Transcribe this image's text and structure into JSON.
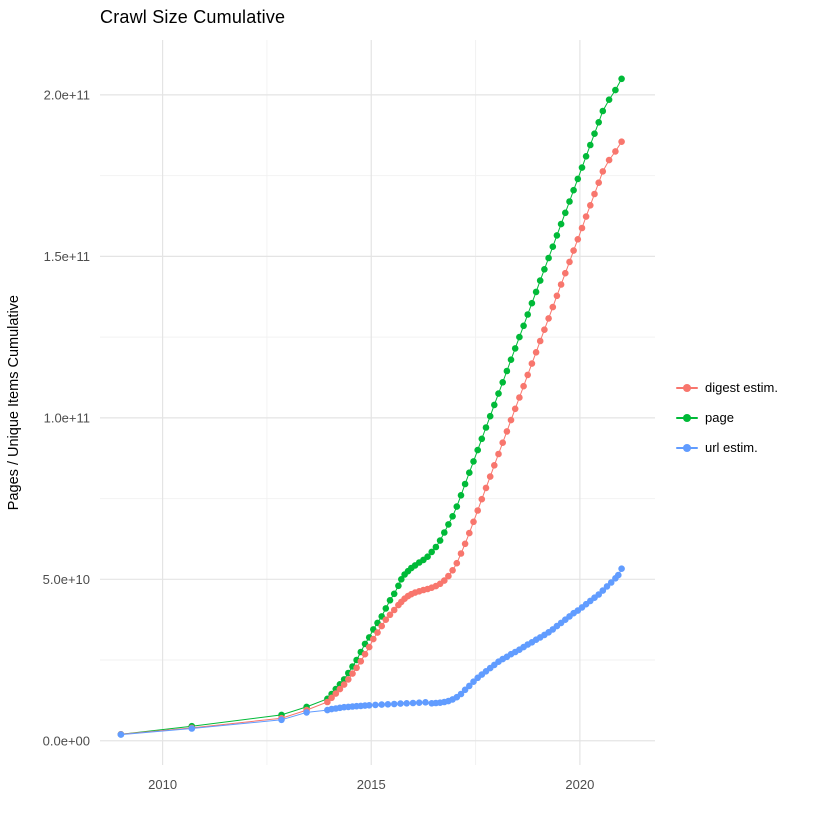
{
  "chart_data": {
    "type": "scatter",
    "title": "Crawl Size Cumulative",
    "xlabel": "",
    "ylabel": "Pages / Unique Items Cumulative",
    "grid": true,
    "legend_position": "right",
    "background": "#FFFFFF",
    "grid_major_color": "#E4E4E4",
    "grid_minor_color": "#F2F2F2",
    "tick_label_color": "#4D4D4D",
    "x_domain": [
      2008.5,
      2021.8
    ],
    "y_domain_e9": [
      -7.5,
      217
    ],
    "x_ticks": [
      {
        "value": 2010,
        "label": "2010"
      },
      {
        "value": 2015,
        "label": "2015"
      },
      {
        "value": 2020,
        "label": "2020"
      }
    ],
    "x_minor_ticks": [
      2012.5,
      2017.5
    ],
    "y_ticks": [
      {
        "value_e9": 0,
        "label": "0.0e+00"
      },
      {
        "value_e9": 50,
        "label": "5.0e+10"
      },
      {
        "value_e9": 100,
        "label": "1.0e+11"
      },
      {
        "value_e9": 150,
        "label": "1.5e+11"
      },
      {
        "value_e9": 200,
        "label": "2.0e+11"
      }
    ],
    "y_minor_ticks_e9": [
      25,
      75,
      125,
      175
    ],
    "series": [
      {
        "name": "digest estim.",
        "color": "#F8766D",
        "points_year_value_e9": [
          [
            2009.0,
            2.0
          ],
          [
            2010.7,
            4.0
          ],
          [
            2012.85,
            7.0
          ],
          [
            2013.45,
            9.5
          ],
          [
            2013.95,
            12.0
          ],
          [
            2014.05,
            13.3
          ],
          [
            2014.15,
            14.6
          ],
          [
            2014.25,
            16.0
          ],
          [
            2014.35,
            17.4
          ],
          [
            2014.45,
            19.0
          ],
          [
            2014.55,
            20.8
          ],
          [
            2014.65,
            22.6
          ],
          [
            2014.75,
            24.6
          ],
          [
            2014.85,
            26.8
          ],
          [
            2014.95,
            29.0
          ],
          [
            2015.05,
            31.5
          ],
          [
            2015.15,
            33.5
          ],
          [
            2015.25,
            35.5
          ],
          [
            2015.35,
            37.5
          ],
          [
            2015.45,
            39.0
          ],
          [
            2015.55,
            40.5
          ],
          [
            2015.65,
            42.0
          ],
          [
            2015.72,
            43.0
          ],
          [
            2015.8,
            44.0
          ],
          [
            2015.88,
            44.8
          ],
          [
            2015.96,
            45.4
          ],
          [
            2016.05,
            45.9
          ],
          [
            2016.15,
            46.3
          ],
          [
            2016.25,
            46.7
          ],
          [
            2016.35,
            47.0
          ],
          [
            2016.45,
            47.4
          ],
          [
            2016.55,
            47.9
          ],
          [
            2016.65,
            48.6
          ],
          [
            2016.75,
            49.6
          ],
          [
            2016.85,
            51.0
          ],
          [
            2016.95,
            52.8
          ],
          [
            2017.05,
            55.0
          ],
          [
            2017.15,
            58.0
          ],
          [
            2017.25,
            61.0
          ],
          [
            2017.35,
            64.3
          ],
          [
            2017.45,
            67.8
          ],
          [
            2017.55,
            71.3
          ],
          [
            2017.65,
            74.8
          ],
          [
            2017.75,
            78.3
          ],
          [
            2017.85,
            81.8
          ],
          [
            2017.95,
            85.3
          ],
          [
            2018.05,
            88.8
          ],
          [
            2018.15,
            92.3
          ],
          [
            2018.25,
            95.8
          ],
          [
            2018.35,
            99.3
          ],
          [
            2018.45,
            102.8
          ],
          [
            2018.55,
            106.3
          ],
          [
            2018.65,
            109.8
          ],
          [
            2018.75,
            113.3
          ],
          [
            2018.85,
            116.8
          ],
          [
            2018.95,
            120.3
          ],
          [
            2019.05,
            123.8
          ],
          [
            2019.15,
            127.3
          ],
          [
            2019.25,
            130.8
          ],
          [
            2019.35,
            134.3
          ],
          [
            2019.45,
            137.8
          ],
          [
            2019.55,
            141.3
          ],
          [
            2019.65,
            144.8
          ],
          [
            2019.75,
            148.3
          ],
          [
            2019.85,
            151.8
          ],
          [
            2019.95,
            155.3
          ],
          [
            2020.05,
            158.8
          ],
          [
            2020.15,
            162.3
          ],
          [
            2020.25,
            165.8
          ],
          [
            2020.35,
            169.3
          ],
          [
            2020.45,
            172.8
          ],
          [
            2020.55,
            176.3
          ],
          [
            2020.7,
            179.8
          ],
          [
            2020.85,
            182.5
          ],
          [
            2021.0,
            185.5
          ]
        ]
      },
      {
        "name": "page",
        "color": "#00BA38",
        "points_year_value_e9": [
          [
            2009.0,
            2.0
          ],
          [
            2010.7,
            4.5
          ],
          [
            2012.85,
            8.0
          ],
          [
            2013.45,
            10.5
          ],
          [
            2013.95,
            13.0
          ],
          [
            2014.05,
            14.5
          ],
          [
            2014.15,
            16.0
          ],
          [
            2014.25,
            17.5
          ],
          [
            2014.35,
            19.0
          ],
          [
            2014.45,
            21.0
          ],
          [
            2014.55,
            23.0
          ],
          [
            2014.65,
            25.0
          ],
          [
            2014.75,
            27.5
          ],
          [
            2014.85,
            30.0
          ],
          [
            2014.95,
            32.0
          ],
          [
            2015.05,
            34.5
          ],
          [
            2015.15,
            36.5
          ],
          [
            2015.25,
            38.5
          ],
          [
            2015.35,
            41.0
          ],
          [
            2015.45,
            43.5
          ],
          [
            2015.55,
            45.5
          ],
          [
            2015.65,
            48.0
          ],
          [
            2015.72,
            50.0
          ],
          [
            2015.8,
            51.5
          ],
          [
            2015.88,
            52.5
          ],
          [
            2015.96,
            53.5
          ],
          [
            2016.05,
            54.3
          ],
          [
            2016.15,
            55.2
          ],
          [
            2016.25,
            56.0
          ],
          [
            2016.35,
            57.0
          ],
          [
            2016.45,
            58.5
          ],
          [
            2016.55,
            60.0
          ],
          [
            2016.65,
            62.0
          ],
          [
            2016.75,
            64.5
          ],
          [
            2016.85,
            67.0
          ],
          [
            2016.95,
            69.5
          ],
          [
            2017.05,
            72.5
          ],
          [
            2017.15,
            76.0
          ],
          [
            2017.25,
            79.5
          ],
          [
            2017.35,
            83.0
          ],
          [
            2017.45,
            86.5
          ],
          [
            2017.55,
            90.0
          ],
          [
            2017.65,
            93.5
          ],
          [
            2017.75,
            97.0
          ],
          [
            2017.85,
            100.5
          ],
          [
            2017.95,
            104.0
          ],
          [
            2018.05,
            107.5
          ],
          [
            2018.15,
            111.0
          ],
          [
            2018.25,
            114.5
          ],
          [
            2018.35,
            118.0
          ],
          [
            2018.45,
            121.5
          ],
          [
            2018.55,
            125.0
          ],
          [
            2018.65,
            128.5
          ],
          [
            2018.75,
            132.0
          ],
          [
            2018.85,
            135.5
          ],
          [
            2018.95,
            139.0
          ],
          [
            2019.05,
            142.5
          ],
          [
            2019.15,
            146.0
          ],
          [
            2019.25,
            149.5
          ],
          [
            2019.35,
            153.0
          ],
          [
            2019.45,
            156.5
          ],
          [
            2019.55,
            160.0
          ],
          [
            2019.65,
            163.5
          ],
          [
            2019.75,
            167.0
          ],
          [
            2019.85,
            170.5
          ],
          [
            2019.95,
            174.0
          ],
          [
            2020.05,
            177.5
          ],
          [
            2020.15,
            181.0
          ],
          [
            2020.25,
            184.5
          ],
          [
            2020.35,
            188.0
          ],
          [
            2020.45,
            191.5
          ],
          [
            2020.55,
            195.0
          ],
          [
            2020.7,
            198.5
          ],
          [
            2020.85,
            201.5
          ],
          [
            2021.0,
            205.0
          ]
        ]
      },
      {
        "name": "url estim.",
        "color": "#619CFF",
        "points_year_value_e9": [
          [
            2009.0,
            1.9
          ],
          [
            2010.7,
            3.8
          ],
          [
            2012.85,
            6.5
          ],
          [
            2013.45,
            8.8
          ],
          [
            2013.95,
            9.5
          ],
          [
            2014.05,
            9.8
          ],
          [
            2014.15,
            10.0
          ],
          [
            2014.25,
            10.2
          ],
          [
            2014.35,
            10.4
          ],
          [
            2014.45,
            10.5
          ],
          [
            2014.55,
            10.6
          ],
          [
            2014.65,
            10.7
          ],
          [
            2014.75,
            10.8
          ],
          [
            2014.85,
            10.9
          ],
          [
            2014.95,
            11.0
          ],
          [
            2015.1,
            11.1
          ],
          [
            2015.25,
            11.2
          ],
          [
            2015.4,
            11.3
          ],
          [
            2015.55,
            11.4
          ],
          [
            2015.7,
            11.5
          ],
          [
            2015.85,
            11.6
          ],
          [
            2016.0,
            11.7
          ],
          [
            2016.15,
            11.8
          ],
          [
            2016.3,
            11.9
          ],
          [
            2016.45,
            11.6
          ],
          [
            2016.55,
            11.7
          ],
          [
            2016.65,
            11.8
          ],
          [
            2016.75,
            12.0
          ],
          [
            2016.85,
            12.3
          ],
          [
            2016.95,
            12.8
          ],
          [
            2017.05,
            13.5
          ],
          [
            2017.15,
            14.5
          ],
          [
            2017.25,
            15.8
          ],
          [
            2017.35,
            17.0
          ],
          [
            2017.45,
            18.3
          ],
          [
            2017.55,
            19.5
          ],
          [
            2017.65,
            20.5
          ],
          [
            2017.75,
            21.5
          ],
          [
            2017.85,
            22.5
          ],
          [
            2017.95,
            23.5
          ],
          [
            2018.05,
            24.5
          ],
          [
            2018.15,
            25.3
          ],
          [
            2018.25,
            26.0
          ],
          [
            2018.35,
            26.8
          ],
          [
            2018.45,
            27.5
          ],
          [
            2018.55,
            28.2
          ],
          [
            2018.65,
            29.0
          ],
          [
            2018.75,
            29.8
          ],
          [
            2018.85,
            30.5
          ],
          [
            2018.95,
            31.3
          ],
          [
            2019.05,
            32.0
          ],
          [
            2019.15,
            32.8
          ],
          [
            2019.25,
            33.6
          ],
          [
            2019.35,
            34.5
          ],
          [
            2019.45,
            35.5
          ],
          [
            2019.55,
            36.5
          ],
          [
            2019.65,
            37.5
          ],
          [
            2019.75,
            38.5
          ],
          [
            2019.85,
            39.5
          ],
          [
            2019.95,
            40.3
          ],
          [
            2020.05,
            41.3
          ],
          [
            2020.15,
            42.3
          ],
          [
            2020.25,
            43.3
          ],
          [
            2020.35,
            44.3
          ],
          [
            2020.45,
            45.3
          ],
          [
            2020.55,
            46.5
          ],
          [
            2020.65,
            47.8
          ],
          [
            2020.75,
            49.0
          ],
          [
            2020.85,
            50.3
          ],
          [
            2020.92,
            51.3
          ],
          [
            2021.0,
            53.3
          ]
        ]
      }
    ]
  }
}
